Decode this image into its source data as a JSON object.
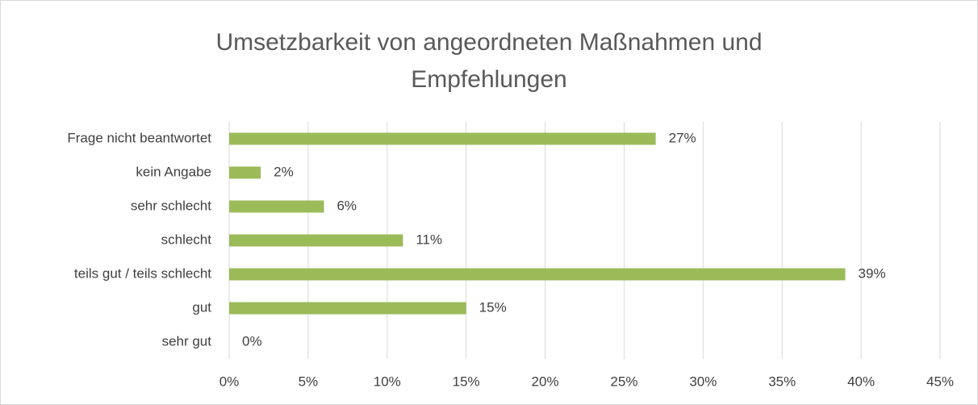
{
  "chart_data": {
    "type": "bar",
    "orientation": "horizontal",
    "title": "Umsetzbarkeit von angeordneten Maßnahmen und Empfehlungen",
    "categories": [
      "Frage nicht beantwortet",
      "kein Angabe",
      "sehr schlecht",
      "schlecht",
      "teils gut / teils schlecht",
      "gut",
      "sehr gut"
    ],
    "values": [
      27,
      2,
      6,
      11,
      39,
      15,
      0
    ],
    "value_labels": [
      "27%",
      "2%",
      "6%",
      "11%",
      "39%",
      "15%",
      "0%"
    ],
    "color": "#9bbb59",
    "xlim": [
      0,
      45
    ],
    "xticks": [
      {
        "value": 0,
        "label": "0%"
      },
      {
        "value": 5,
        "label": "5%"
      },
      {
        "value": 10,
        "label": "10%"
      },
      {
        "value": 15,
        "label": "15%"
      },
      {
        "value": 20,
        "label": "20%"
      },
      {
        "value": 25,
        "label": "25%"
      },
      {
        "value": 30,
        "label": "30%"
      },
      {
        "value": 35,
        "label": "35%"
      },
      {
        "value": 40,
        "label": "40%"
      },
      {
        "value": 45,
        "label": "45%"
      }
    ],
    "grid": true
  }
}
